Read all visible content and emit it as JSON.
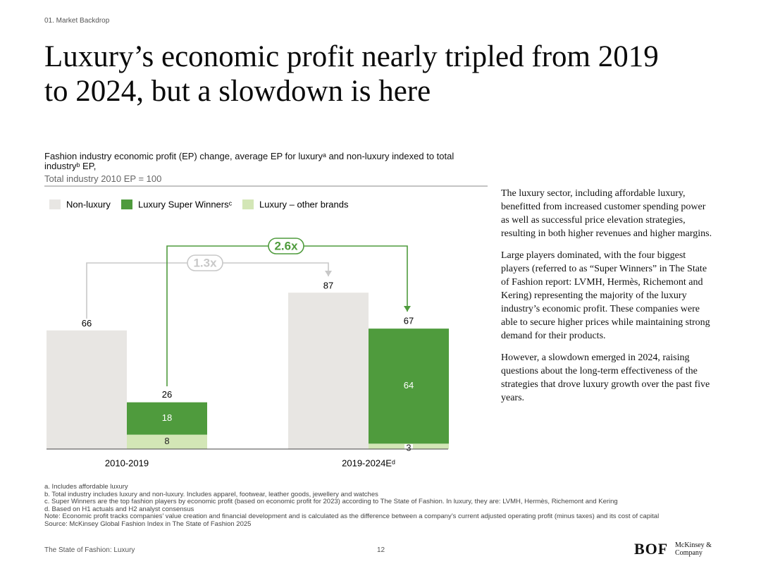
{
  "section": "01. Market Backdrop",
  "title": "Luxury’s economic profit nearly tripled from 2019 to 2024, but a slowdown is here",
  "chart_data": {
    "type": "bar",
    "title": "Fashion industry economic profit (EP) change, average EP for luxuryᵃ and non-luxury indexed to total industryᵇ EP,",
    "subtitle": "Total industry 2010 EP = 100",
    "categories": [
      "2010-2019",
      "2019-2024Eᵈ"
    ],
    "series": [
      {
        "name": "Non-luxury",
        "color": "#e8e6e3",
        "values": [
          66,
          87
        ]
      },
      {
        "name": "Luxury Super Winnersᶜ",
        "color": "#4f9b3d",
        "values": [
          18,
          64
        ]
      },
      {
        "name": "Luxury – other brands",
        "color": "#d3e6b6",
        "values": [
          8,
          3
        ]
      }
    ],
    "totals": [
      26,
      67
    ],
    "annotations": [
      {
        "text": "1.3x",
        "color": "#c8c8c8"
      },
      {
        "text": "2.6x",
        "color": "#4f9b3d"
      }
    ]
  },
  "body": [
    "The luxury sector, including affordable luxury, benefitted from increased customer spending power as well as successful price elevation strategies, resulting in both higher revenues and higher margins.",
    "Large players dominated, with the four biggest players (referred to as “Super Winners” in The State of Fashion report: LVMH, Hermès, Richemont and Kering) representing the majority of the luxury industry’s economic profit. These companies were able to secure higher prices while maintaining strong demand for their products.",
    "However, a slowdown emerged in 2024, raising questions about the long-term effectiveness of the strategies that drove luxury growth over the past five years."
  ],
  "footnotes": [
    "a. Includes affordable luxury",
    "b. Total industry includes luxury and non-luxury. Includes apparel, footwear, leather goods, jewellery and watches",
    "c. Super Winners are the top fashion players by economic profit (based on economic profit for 2023) according to The State of Fashion. In luxury, they are: LVMH, Hermès, Richemont and Kering",
    "d. Based on H1 actuals and H2 analyst consensus",
    "Note: Economic profit tracks companies’ value creation and financial development and is calculated as the difference between a company’s current adjusted operating profit (minus taxes) and its cost of capital",
    "Source: McKinsey Global Fashion Index in The State of Fashion 2025"
  ],
  "footer": {
    "source": "The State of Fashion: Luxury",
    "page": "12",
    "logo_bof": "BOF",
    "logo_mck": "McKinsey & Company"
  }
}
